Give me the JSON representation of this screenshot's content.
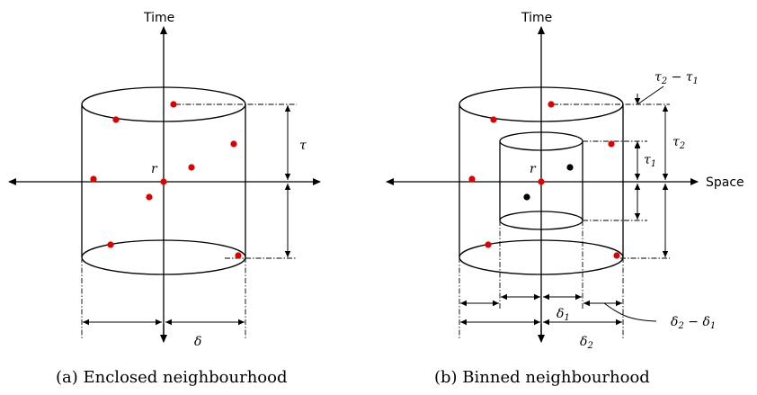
{
  "panel_a": {
    "axis_time": "Time",
    "origin": "r",
    "tau": "τ",
    "delta": "δ",
    "caption": "(a) Enclosed neighbourhood"
  },
  "panel_b": {
    "axis_time": "Time",
    "axis_space": "Space",
    "origin": "r",
    "tau2_minus_tau1": {
      "a": "τ",
      "a_sub": "2",
      "op": " − ",
      "b": "τ",
      "b_sub": "1"
    },
    "tau2": {
      "sym": "τ",
      "sub": "2"
    },
    "tau1": {
      "sym": "τ",
      "sub": "1"
    },
    "delta1": {
      "sym": "δ",
      "sub": "1"
    },
    "delta2": {
      "sym": "δ",
      "sub": "2"
    },
    "delta2_minus_delta1": {
      "a": "δ",
      "a_sub": "2",
      "op": " − ",
      "b": "δ",
      "b_sub": "1"
    },
    "caption": "(b) Binned neighbourhood"
  },
  "colors": {
    "event_red": "#e00000",
    "event_black": "#000000",
    "line": "#000000"
  }
}
